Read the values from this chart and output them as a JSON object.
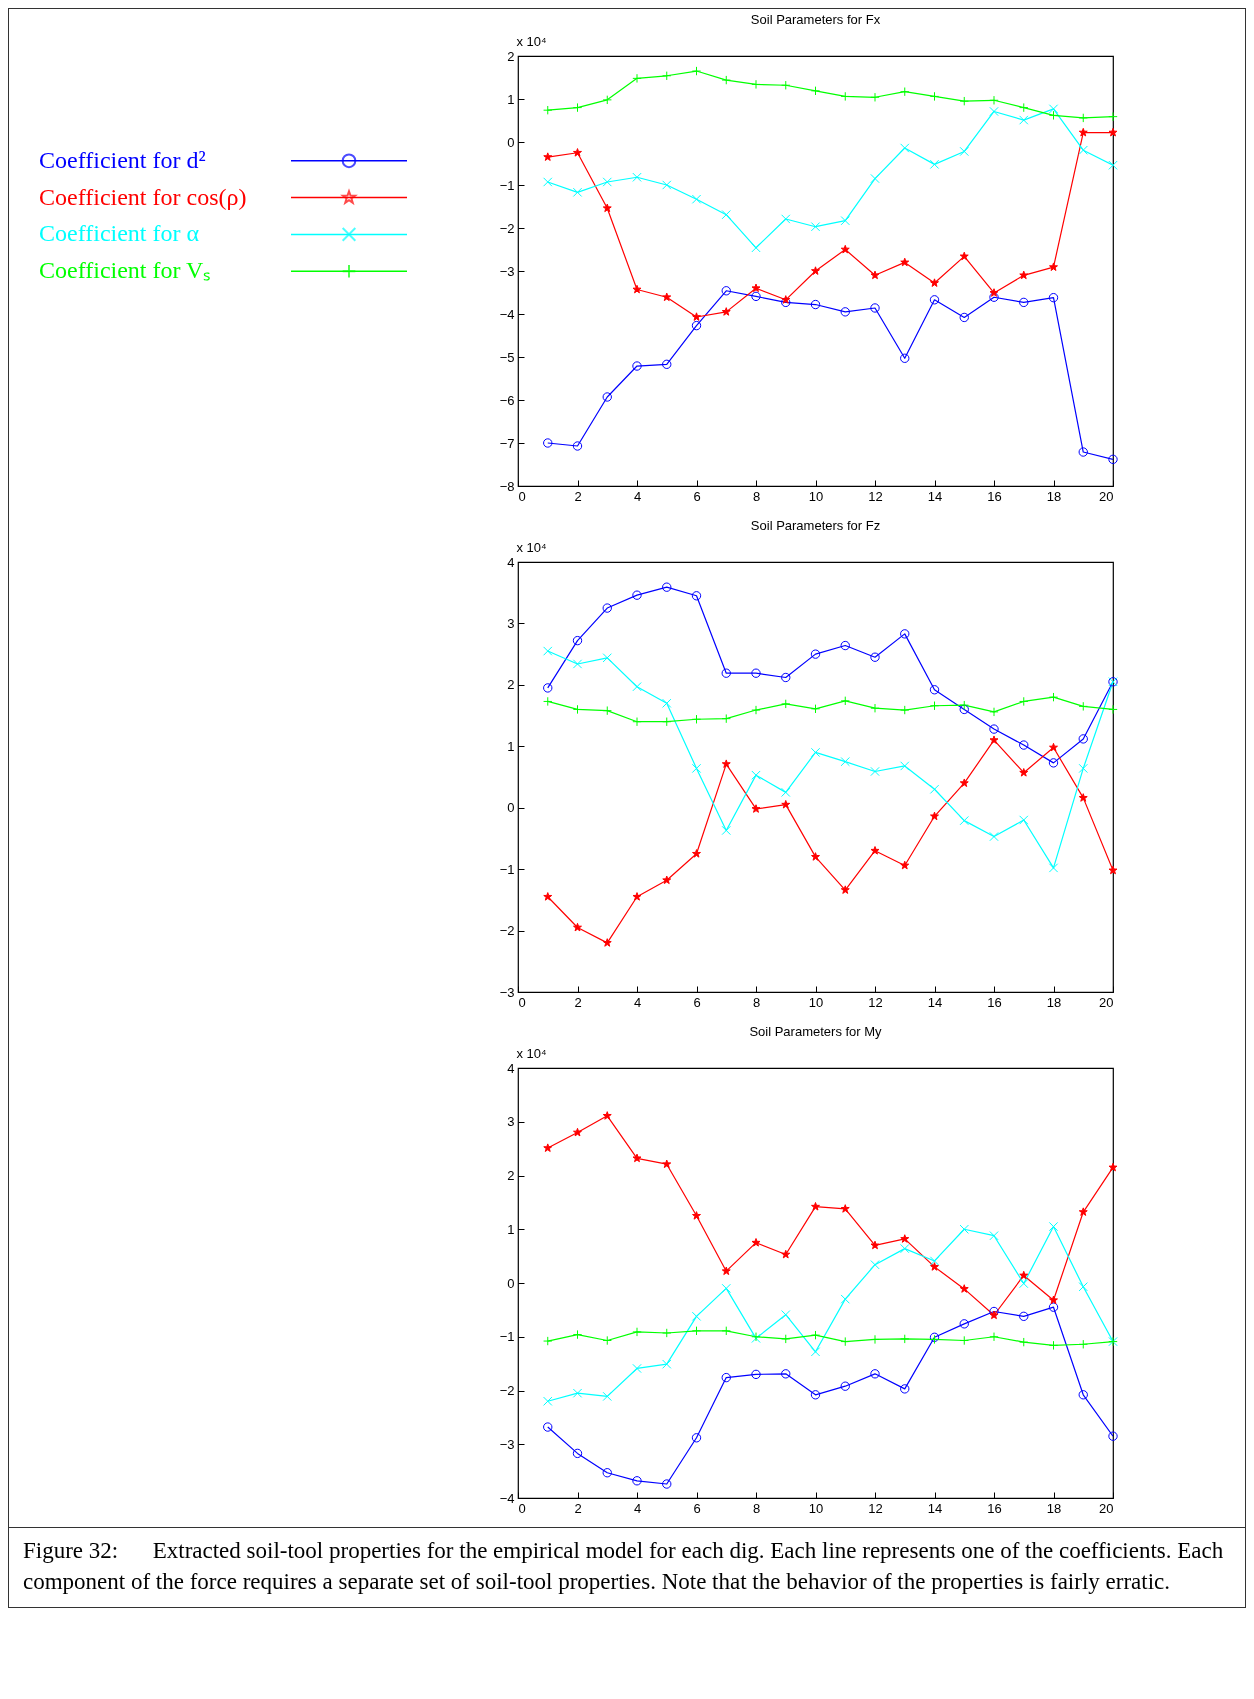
{
  "chart_data": [
    {
      "type": "line",
      "title": "Soil Parameters for Fx",
      "ylabel": "x 10⁴",
      "legend": "left",
      "x": [
        1,
        2,
        3,
        4,
        5,
        6,
        7,
        8,
        9,
        10,
        11,
        12,
        13,
        14,
        15,
        16,
        17,
        18,
        19,
        20
      ],
      "xlim": [
        0,
        20
      ],
      "xticks": [
        0,
        2,
        4,
        6,
        8,
        10,
        12,
        14,
        16,
        18,
        20
      ],
      "ylim": [
        -8,
        2
      ],
      "yticks": [
        -8,
        -7,
        -6,
        -5,
        -4,
        -3,
        -2,
        -1,
        0,
        1,
        2
      ],
      "series": [
        {
          "name": "Coefficient for d²",
          "color": "#0000ff",
          "marker": "circle",
          "values": [
            -7.0,
            -7.07,
            -5.93,
            -5.21,
            -5.17,
            -4.27,
            -3.46,
            -3.59,
            -3.73,
            -3.78,
            -3.95,
            -3.86,
            -5.03,
            -3.67,
            -4.08,
            -3.61,
            -3.73,
            -3.62,
            -7.21,
            -7.38
          ]
        },
        {
          "name": "Coefficient for cos(ρ)",
          "color": "#ff0000",
          "marker": "star",
          "values": [
            -0.35,
            -0.25,
            -1.54,
            -3.43,
            -3.61,
            -4.07,
            -3.95,
            -3.4,
            -3.67,
            -3.0,
            -2.5,
            -3.1,
            -2.8,
            -3.28,
            -2.66,
            -3.51,
            -3.1,
            -2.91,
            0.22,
            0.22
          ]
        },
        {
          "name": "Coefficient for α",
          "color": "#00ffff",
          "marker": "cross",
          "values": [
            -0.93,
            -1.17,
            -0.93,
            -0.82,
            -1.0,
            -1.33,
            -1.69,
            -2.46,
            -1.79,
            -1.97,
            -1.83,
            -0.85,
            -0.14,
            -0.52,
            -0.22,
            0.71,
            0.51,
            0.77,
            -0.19,
            -0.54
          ]
        },
        {
          "name": "Coefficient for Vₛ",
          "color": "#00ff00",
          "marker": "plus",
          "values": [
            0.74,
            0.8,
            0.98,
            1.48,
            1.54,
            1.65,
            1.44,
            1.34,
            1.32,
            1.19,
            1.06,
            1.04,
            1.17,
            1.06,
            0.95,
            0.97,
            0.8,
            0.62,
            0.56,
            0.59
          ]
        }
      ]
    },
    {
      "type": "line",
      "title": "Soil Parameters for Fz",
      "ylabel": "x 10⁴",
      "x": [
        1,
        2,
        3,
        4,
        5,
        6,
        7,
        8,
        9,
        10,
        11,
        12,
        13,
        14,
        15,
        16,
        17,
        18,
        19,
        20
      ],
      "xlim": [
        0,
        20
      ],
      "xticks": [
        0,
        2,
        4,
        6,
        8,
        10,
        12,
        14,
        16,
        18,
        20
      ],
      "ylim": [
        -3,
        4
      ],
      "yticks": [
        -3,
        -2,
        -1,
        0,
        1,
        2,
        3,
        4
      ],
      "series": [
        {
          "color": "#0000ff",
          "marker": "circle",
          "values": [
            1.95,
            2.72,
            3.25,
            3.46,
            3.59,
            3.45,
            2.19,
            2.19,
            2.12,
            2.5,
            2.64,
            2.45,
            2.83,
            1.92,
            1.6,
            1.28,
            1.02,
            0.73,
            1.12,
            2.05
          ]
        },
        {
          "color": "#ff0000",
          "marker": "star",
          "values": [
            -1.45,
            -1.95,
            -2.2,
            -1.45,
            -1.18,
            -0.75,
            0.71,
            -0.02,
            0.05,
            -0.8,
            -1.34,
            -0.7,
            -0.94,
            -0.14,
            0.4,
            1.1,
            0.57,
            0.98,
            0.16,
            -1.02
          ]
        },
        {
          "color": "#00ffff",
          "marker": "cross",
          "values": [
            2.55,
            2.34,
            2.44,
            1.97,
            1.7,
            0.64,
            -0.37,
            0.53,
            0.25,
            0.9,
            0.75,
            0.59,
            0.68,
            0.3,
            -0.21,
            -0.47,
            -0.2,
            -0.98,
            0.64,
            2.05
          ]
        },
        {
          "color": "#00ff00",
          "marker": "plus",
          "values": [
            1.73,
            1.6,
            1.58,
            1.4,
            1.4,
            1.44,
            1.45,
            1.59,
            1.69,
            1.61,
            1.74,
            1.62,
            1.59,
            1.66,
            1.67,
            1.56,
            1.73,
            1.8,
            1.65,
            1.6
          ]
        }
      ]
    },
    {
      "type": "line",
      "title": "Soil Parameters for My",
      "ylabel": "x 10⁴",
      "x": [
        1,
        2,
        3,
        4,
        5,
        6,
        7,
        8,
        9,
        10,
        11,
        12,
        13,
        14,
        15,
        16,
        17,
        18,
        19,
        20
      ],
      "xlim": [
        0,
        20
      ],
      "xticks": [
        0,
        2,
        4,
        6,
        8,
        10,
        12,
        14,
        16,
        18,
        20
      ],
      "ylim": [
        -4,
        4
      ],
      "yticks": [
        -4,
        -3,
        -2,
        -1,
        0,
        1,
        2,
        3,
        4
      ],
      "annotations": [
        "Figure 32:      Extracted soil-tool properties for the empirical model for each dig. Each line represents one of the coefficients. Each component of the force requires a separate set of soil-tool properties. Note that the behavior of the properties is fairly erratic."
      ],
      "series": [
        {
          "color": "#0000ff",
          "marker": "circle",
          "values": [
            -2.68,
            -3.17,
            -3.53,
            -3.68,
            -3.74,
            -2.88,
            -1.76,
            -1.7,
            -1.69,
            -2.08,
            -1.92,
            -1.69,
            -1.97,
            -1.01,
            -0.76,
            -0.53,
            -0.62,
            -0.45,
            -2.08,
            -2.85
          ]
        },
        {
          "color": "#ff0000",
          "marker": "star",
          "values": [
            2.51,
            2.8,
            3.11,
            2.32,
            2.21,
            1.25,
            0.22,
            0.75,
            0.53,
            1.42,
            1.38,
            0.7,
            0.82,
            0.3,
            -0.11,
            -0.6,
            0.14,
            -0.32,
            1.32,
            2.15
          ]
        },
        {
          "color": "#00ffff",
          "marker": "cross",
          "values": [
            -2.2,
            -2.05,
            -2.11,
            -1.59,
            -1.51,
            -0.62,
            -0.1,
            -1.03,
            -0.59,
            -1.28,
            -0.3,
            0.34,
            0.64,
            0.41,
            1.0,
            0.88,
            -0.01,
            1.05,
            -0.07,
            -1.09
          ]
        },
        {
          "color": "#00ff00",
          "marker": "plus",
          "values": [
            -1.08,
            -0.96,
            -1.07,
            -0.91,
            -0.93,
            -0.89,
            -0.89,
            -1.0,
            -1.04,
            -0.97,
            -1.09,
            -1.05,
            -1.04,
            -1.05,
            -1.07,
            -1.0,
            -1.1,
            -1.16,
            -1.14,
            -1.09
          ]
        }
      ]
    }
  ]
}
